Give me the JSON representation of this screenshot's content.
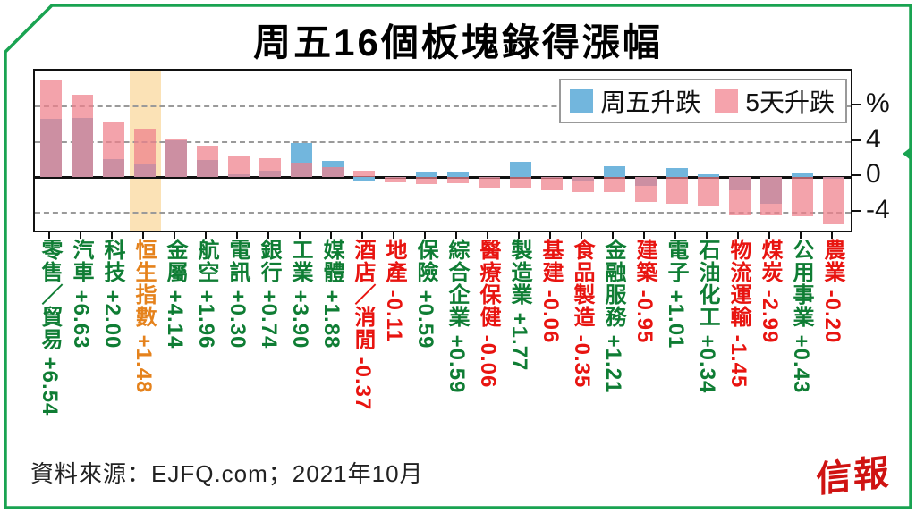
{
  "title": "周五16個板塊錄得漲幅",
  "legend": [
    {
      "label": "周五升跌",
      "color": "#72b6dd"
    },
    {
      "label": "5天升跌",
      "color": "#f5a3ac"
    }
  ],
  "y_axis": {
    "ticks": [
      {
        "value": 8,
        "label": "%"
      },
      {
        "value": 4,
        "label": "4"
      },
      {
        "value": 0,
        "label": "0"
      },
      {
        "value": -4,
        "label": "-4"
      }
    ]
  },
  "source": "資料來源：EJFQ.com；2021年10月",
  "logo": "信報",
  "colors": {
    "frame_green": "#19a351",
    "positive_text": "#0f7d34",
    "negative_text": "#e81410",
    "hsi_text": "#e5821c",
    "friday_bar": "#72b6dd",
    "fiveday_bar": "#ee808a",
    "highlight_band": "#fbe2b6"
  },
  "chart_data": {
    "type": "bar",
    "title": "周五16個板塊錄得漲幅",
    "categories": [
      "零售／貿易",
      "汽車",
      "科技",
      "恒生指數",
      "金屬",
      "航空",
      "電訊",
      "銀行",
      "工業",
      "媒體",
      "酒店／消閒",
      "地產",
      "保險",
      "綜合企業",
      "醫療保健",
      "製造業",
      "基建",
      "食品製造",
      "金融服務",
      "建築",
      "電子",
      "石油化工",
      "物流運輸",
      "煤炭",
      "公用事業",
      "農業"
    ],
    "series": [
      {
        "name": "周五升跌",
        "values": [
          6.54,
          6.63,
          2.0,
          1.48,
          4.14,
          1.96,
          0.3,
          0.74,
          3.9,
          1.88,
          -0.37,
          -0.11,
          0.59,
          0.59,
          -0.06,
          1.77,
          -0.06,
          -0.35,
          1.21,
          -0.95,
          1.01,
          0.34,
          -1.45,
          -2.99,
          0.43,
          -0.2
        ]
      },
      {
        "name": "5天升跌",
        "values": [
          11.0,
          9.3,
          6.2,
          5.5,
          4.4,
          3.6,
          2.3,
          2.1,
          1.6,
          1.1,
          0.75,
          -0.55,
          -0.8,
          -0.7,
          -1.2,
          -1.2,
          -1.5,
          -1.7,
          -1.7,
          -2.8,
          -3.0,
          -3.2,
          -4.3,
          -4.3,
          -4.4,
          -5.3
        ]
      }
    ],
    "value_labels": [
      "+6.54",
      "+6.63",
      "+2.00",
      "+1.48",
      "+4.14",
      "+1.96",
      "+0.30",
      "+0.74",
      "+3.90",
      "+1.88",
      "-0.37",
      "-0.11",
      "+0.59",
      "+0.59",
      "-0.06",
      "+1.77",
      "-0.06",
      "-0.35",
      "+1.21",
      "-0.95",
      "+1.01",
      "+0.34",
      "-1.45",
      "-2.99",
      "+0.43",
      "-0.20"
    ],
    "label_colors": [
      "#0f7d34",
      "#0f7d34",
      "#0f7d34",
      "#e5821c",
      "#0f7d34",
      "#0f7d34",
      "#0f7d34",
      "#0f7d34",
      "#0f7d34",
      "#0f7d34",
      "#e81410",
      "#e81410",
      "#0f7d34",
      "#0f7d34",
      "#e81410",
      "#0f7d34",
      "#e81410",
      "#e81410",
      "#0f7d34",
      "#e81410",
      "#0f7d34",
      "#0f7d34",
      "#e81410",
      "#e81410",
      "#0f7d34",
      "#e81410"
    ],
    "highlight_index": 3,
    "ylabel": "%",
    "ylim": [
      -6,
      12
    ],
    "gridlines": [
      8,
      4,
      -4
    ],
    "grid": true,
    "legend_position": "top-right"
  }
}
